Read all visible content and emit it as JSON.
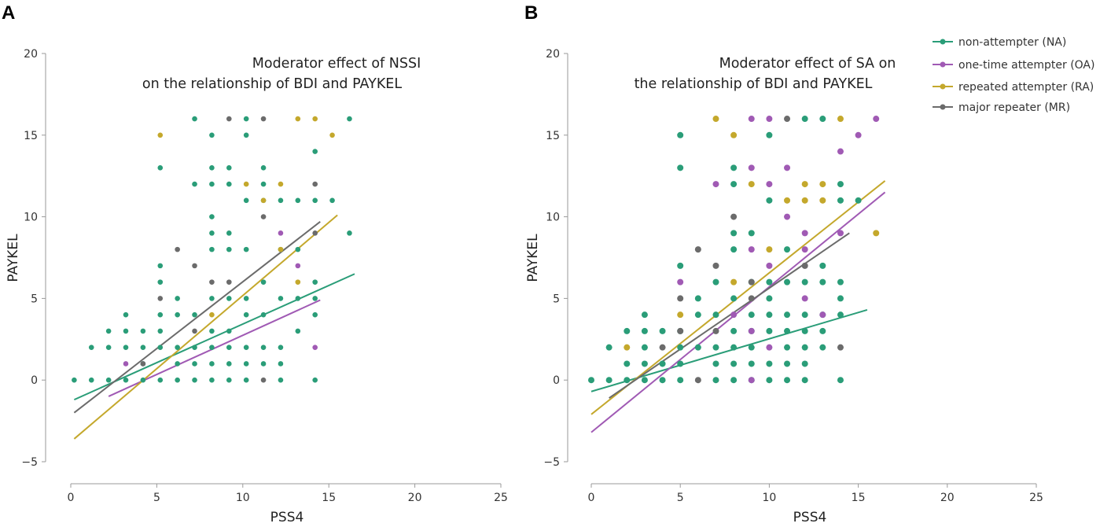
{
  "chart_data": [
    {
      "type": "scatter",
      "panel_label": "A",
      "title_lines": [
        "Moderator effect of NSSI",
        "on the relationship of BDI and PAYKEL"
      ],
      "xlabel": "PSS4",
      "ylabel": "PAYKEL",
      "xlim": [
        0,
        25
      ],
      "ylim": [
        -5,
        20
      ],
      "xticks": [
        0,
        5,
        10,
        15,
        20,
        25
      ],
      "yticks": [
        -5,
        0,
        5,
        10,
        15,
        20
      ],
      "series": [
        {
          "name": "NA",
          "points": [
            [
              0.2,
              0
            ],
            [
              1.2,
              0
            ],
            [
              1.2,
              2
            ],
            [
              2.2,
              0
            ],
            [
              2.2,
              2
            ],
            [
              2.2,
              3
            ],
            [
              3.2,
              0
            ],
            [
              3.2,
              2
            ],
            [
              3.2,
              3
            ],
            [
              3.2,
              4
            ],
            [
              4.2,
              0
            ],
            [
              4.2,
              1
            ],
            [
              4.2,
              2
            ],
            [
              4.2,
              3
            ],
            [
              5.2,
              0
            ],
            [
              5.2,
              2
            ],
            [
              5.2,
              3
            ],
            [
              5.2,
              4
            ],
            [
              5.2,
              6
            ],
            [
              5.2,
              7
            ],
            [
              5.2,
              13
            ],
            [
              6.2,
              0
            ],
            [
              6.2,
              1
            ],
            [
              6.2,
              2
            ],
            [
              6.2,
              4
            ],
            [
              6.2,
              5
            ],
            [
              7.2,
              0
            ],
            [
              7.2,
              1
            ],
            [
              7.2,
              2
            ],
            [
              7.2,
              4
            ],
            [
              7.2,
              12
            ],
            [
              7.2,
              16
            ],
            [
              8.2,
              0
            ],
            [
              8.2,
              1
            ],
            [
              8.2,
              2
            ],
            [
              8.2,
              3
            ],
            [
              8.2,
              5
            ],
            [
              8.2,
              8
            ],
            [
              8.2,
              9
            ],
            [
              8.2,
              10
            ],
            [
              8.2,
              12
            ],
            [
              8.2,
              13
            ],
            [
              8.2,
              15
            ],
            [
              9.2,
              0
            ],
            [
              9.2,
              1
            ],
            [
              9.2,
              2
            ],
            [
              9.2,
              3
            ],
            [
              9.2,
              5
            ],
            [
              9.2,
              8
            ],
            [
              9.2,
              9
            ],
            [
              9.2,
              12
            ],
            [
              9.2,
              13
            ],
            [
              10.2,
              0
            ],
            [
              10.2,
              1
            ],
            [
              10.2,
              2
            ],
            [
              10.2,
              4
            ],
            [
              10.2,
              5
            ],
            [
              10.2,
              8
            ],
            [
              10.2,
              11
            ],
            [
              10.2,
              15
            ],
            [
              10.2,
              16
            ],
            [
              11.2,
              1
            ],
            [
              11.2,
              2
            ],
            [
              11.2,
              4
            ],
            [
              11.2,
              6
            ],
            [
              11.2,
              11
            ],
            [
              11.2,
              12
            ],
            [
              11.2,
              13
            ],
            [
              12.2,
              0
            ],
            [
              12.2,
              1
            ],
            [
              12.2,
              2
            ],
            [
              12.2,
              5
            ],
            [
              12.2,
              8
            ],
            [
              12.2,
              11
            ],
            [
              13.2,
              3
            ],
            [
              13.2,
              5
            ],
            [
              13.2,
              8
            ],
            [
              13.2,
              11
            ],
            [
              14.2,
              0
            ],
            [
              14.2,
              4
            ],
            [
              14.2,
              5
            ],
            [
              14.2,
              6
            ],
            [
              14.2,
              11
            ],
            [
              14.2,
              14
            ],
            [
              15.2,
              11
            ],
            [
              16.2,
              9
            ],
            [
              16.2,
              16
            ]
          ],
          "fit": [
            [
              0.2,
              -1.2
            ],
            [
              16.5,
              6.5
            ]
          ]
        },
        {
          "name": "OA",
          "points": [
            [
              3.2,
              1
            ],
            [
              12.2,
              9
            ],
            [
              13.2,
              7
            ],
            [
              14.2,
              2
            ]
          ],
          "fit": [
            [
              2.2,
              -1.0
            ],
            [
              14.5,
              4.9
            ]
          ]
        },
        {
          "name": "RA",
          "points": [
            [
              5.2,
              15
            ],
            [
              8.2,
              4
            ],
            [
              10.2,
              12
            ],
            [
              11.2,
              11
            ],
            [
              12.2,
              12
            ],
            [
              12.2,
              8
            ],
            [
              13.2,
              16
            ],
            [
              13.2,
              6
            ],
            [
              14.2,
              16
            ],
            [
              15.2,
              15
            ]
          ],
          "fit": [
            [
              0.2,
              -3.6
            ],
            [
              15.5,
              10.1
            ]
          ]
        },
        {
          "name": "MR",
          "points": [
            [
              4.2,
              1
            ],
            [
              5.2,
              5
            ],
            [
              6.2,
              8
            ],
            [
              7.2,
              7
            ],
            [
              7.2,
              3
            ],
            [
              8.2,
              6
            ],
            [
              9.2,
              6
            ],
            [
              9.2,
              16
            ],
            [
              11.2,
              16
            ],
            [
              11.2,
              10
            ],
            [
              11.2,
              0
            ],
            [
              14.2,
              12
            ],
            [
              14.2,
              9
            ]
          ],
          "fit": [
            [
              0.2,
              -2.0
            ],
            [
              14.5,
              9.7
            ]
          ]
        }
      ]
    },
    {
      "type": "scatter",
      "panel_label": "B",
      "title_lines": [
        "Moderator effect of SA on",
        "the relationship of BDI and PAYKEL"
      ],
      "xlabel": "PSS4",
      "ylabel": "PAYKEL",
      "xlim": [
        0,
        25
      ],
      "ylim": [
        -5,
        20
      ],
      "xticks": [
        0,
        5,
        10,
        15,
        20,
        25
      ],
      "yticks": [
        -5,
        0,
        5,
        10,
        15,
        20
      ],
      "legend_position": "top-right",
      "series": [
        {
          "name": "NA",
          "points": [
            [
              0,
              0
            ],
            [
              1,
              0
            ],
            [
              1,
              2
            ],
            [
              2,
              0
            ],
            [
              2,
              1
            ],
            [
              2,
              3
            ],
            [
              3,
              0
            ],
            [
              3,
              1
            ],
            [
              3,
              2
            ],
            [
              3,
              3
            ],
            [
              3,
              4
            ],
            [
              4,
              0
            ],
            [
              4,
              1
            ],
            [
              4,
              3
            ],
            [
              5,
              0
            ],
            [
              5,
              1
            ],
            [
              5,
              2
            ],
            [
              5,
              3
            ],
            [
              5,
              7
            ],
            [
              5,
              13
            ],
            [
              5,
              15
            ],
            [
              6,
              2
            ],
            [
              6,
              4
            ],
            [
              6,
              5
            ],
            [
              7,
              0
            ],
            [
              7,
              1
            ],
            [
              7,
              2
            ],
            [
              7,
              4
            ],
            [
              7,
              6
            ],
            [
              8,
              0
            ],
            [
              8,
              1
            ],
            [
              8,
              2
            ],
            [
              8,
              3
            ],
            [
              8,
              5
            ],
            [
              8,
              8
            ],
            [
              8,
              9
            ],
            [
              8,
              12
            ],
            [
              8,
              13
            ],
            [
              9,
              0
            ],
            [
              9,
              1
            ],
            [
              9,
              2
            ],
            [
              9,
              3
            ],
            [
              9,
              4
            ],
            [
              9,
              6
            ],
            [
              9,
              9
            ],
            [
              10,
              0
            ],
            [
              10,
              1
            ],
            [
              10,
              3
            ],
            [
              10,
              4
            ],
            [
              10,
              5
            ],
            [
              10,
              6
            ],
            [
              10,
              11
            ],
            [
              10,
              15
            ],
            [
              11,
              0
            ],
            [
              11,
              1
            ],
            [
              11,
              2
            ],
            [
              11,
              3
            ],
            [
              11,
              4
            ],
            [
              11,
              6
            ],
            [
              11,
              8
            ],
            [
              12,
              0
            ],
            [
              12,
              1
            ],
            [
              12,
              2
            ],
            [
              12,
              3
            ],
            [
              12,
              4
            ],
            [
              12,
              6
            ],
            [
              12,
              16
            ],
            [
              13,
              2
            ],
            [
              13,
              3
            ],
            [
              13,
              4
            ],
            [
              13,
              6
            ],
            [
              13,
              7
            ],
            [
              13,
              16
            ],
            [
              14,
              0
            ],
            [
              14,
              4
            ],
            [
              14,
              5
            ],
            [
              14,
              6
            ],
            [
              14,
              11
            ],
            [
              14,
              12
            ],
            [
              15,
              11
            ]
          ],
          "fit": [
            [
              0,
              -0.7
            ],
            [
              15.5,
              4.3
            ]
          ]
        },
        {
          "name": "OA",
          "points": [
            [
              5,
              6
            ],
            [
              7,
              12
            ],
            [
              8,
              4
            ],
            [
              9,
              0
            ],
            [
              9,
              3
            ],
            [
              9,
              8
            ],
            [
              9,
              13
            ],
            [
              9,
              16
            ],
            [
              10,
              2
            ],
            [
              10,
              7
            ],
            [
              10,
              12
            ],
            [
              10,
              16
            ],
            [
              11,
              10
            ],
            [
              11,
              13
            ],
            [
              12,
              5
            ],
            [
              12,
              8
            ],
            [
              12,
              9
            ],
            [
              13,
              4
            ],
            [
              14,
              9
            ],
            [
              14,
              14
            ],
            [
              15,
              15
            ],
            [
              16,
              16
            ]
          ],
          "fit": [
            [
              0,
              -3.2
            ],
            [
              16.5,
              11.5
            ]
          ]
        },
        {
          "name": "RA",
          "points": [
            [
              2,
              2
            ],
            [
              5,
              4
            ],
            [
              7,
              16
            ],
            [
              8,
              6
            ],
            [
              8,
              15
            ],
            [
              9,
              12
            ],
            [
              10,
              8
            ],
            [
              11,
              11
            ],
            [
              12,
              12
            ],
            [
              12,
              11
            ],
            [
              13,
              12
            ],
            [
              13,
              11
            ],
            [
              14,
              16
            ],
            [
              16,
              9
            ]
          ],
          "fit": [
            [
              0,
              -2.1
            ],
            [
              16.5,
              12.2
            ]
          ]
        },
        {
          "name": "MR",
          "points": [
            [
              4,
              2
            ],
            [
              5,
              5
            ],
            [
              5,
              3
            ],
            [
              6,
              8
            ],
            [
              6,
              0
            ],
            [
              7,
              7
            ],
            [
              7,
              3
            ],
            [
              8,
              10
            ],
            [
              9,
              6
            ],
            [
              9,
              5
            ],
            [
              11,
              16
            ],
            [
              12,
              7
            ],
            [
              14,
              2
            ]
          ],
          "fit": [
            [
              1,
              -1.1
            ],
            [
              14.5,
              9.0
            ]
          ]
        }
      ]
    }
  ],
  "legend": [
    {
      "label": "non-attempter (NA)",
      "color": "#2a9d78"
    },
    {
      "label": "one-time attempter (OA)",
      "color": "#a05ab4"
    },
    {
      "label": "repeated attempter (RA)",
      "color": "#c4a82c"
    },
    {
      "label": "major repeater (MR)",
      "color": "#6b6b6b"
    }
  ],
  "series_colors": {
    "NA": "#2a9d78",
    "OA": "#a05ab4",
    "RA": "#c4a82c",
    "MR": "#6b6b6b"
  }
}
